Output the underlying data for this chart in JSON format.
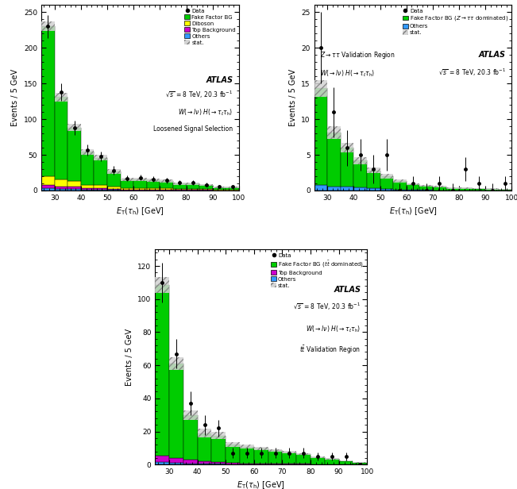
{
  "bins": [
    25,
    30,
    35,
    40,
    45,
    50,
    55,
    60,
    65,
    70,
    75,
    80,
    85,
    90,
    95,
    100
  ],
  "bin_centers": [
    27.5,
    32.5,
    37.5,
    42.5,
    47.5,
    52.5,
    57.5,
    62.5,
    67.5,
    72.5,
    77.5,
    82.5,
    87.5,
    92.5,
    97.5
  ],
  "plot1": {
    "ylabel": "Events / 5 GeV",
    "xlabel": "$E_{\\mathrm{T}}(\\tau_{\\mathrm{h}})$ [GeV]",
    "ylim": [
      0,
      260
    ],
    "yticks": [
      0,
      50,
      100,
      150,
      200,
      250
    ],
    "data_y": [
      230,
      138,
      88,
      57,
      48,
      28,
      17,
      18,
      16,
      14,
      11,
      11,
      8,
      5,
      5
    ],
    "data_yerr": [
      16,
      12,
      10,
      8,
      7,
      6,
      4,
      4,
      4,
      4,
      3,
      3,
      3,
      2,
      2
    ],
    "fake_factor": [
      210,
      115,
      75,
      46,
      38,
      21,
      12,
      12,
      11,
      10,
      8,
      8,
      6,
      3.5,
      3.5
    ],
    "diboson": [
      12,
      10,
      8,
      5,
      5,
      3,
      2,
      2,
      2,
      2,
      1,
      1,
      1,
      0.5,
      0.5
    ],
    "top_bg": [
      5,
      4,
      3,
      2,
      2,
      1.5,
      1,
      1,
      1,
      1,
      0.5,
      0.5,
      0.5,
      0.3,
      0.3
    ],
    "others": [
      3,
      2,
      2,
      1,
      1,
      1,
      0.5,
      0.5,
      0.5,
      0.5,
      0.3,
      0.3,
      0.3,
      0.2,
      0.2
    ],
    "stat_err": [
      7,
      6,
      5,
      4,
      3.5,
      3,
      2,
      2,
      2,
      2,
      1.5,
      1.5,
      1.2,
      1,
      1
    ],
    "colors": {
      "fake_factor": "#00cc00",
      "diboson": "#ffff00",
      "top_bg": "#cc00cc",
      "others": "#3399ff"
    },
    "legend": [
      "Data",
      "Fake Factor BG",
      "Diboson",
      "Top Background",
      "Others",
      "stat."
    ],
    "annot_energy": "$\\sqrt{s}$ = 8 TeV, 20.3 fb$^{-1}$",
    "annot_channel": "$W(\\to l\\nu)$ $H(\\to\\tau_{\\ell}\\tau_{\\mathrm{h}})$",
    "annot_extra": "Loosened Signal Selection"
  },
  "plot2": {
    "ylabel": "Events / 5 GeV",
    "xlabel": "$E_{\\mathrm{T}}(\\tau_{\\mathrm{h}})$ [GeV]",
    "ylim": [
      0,
      26
    ],
    "yticks": [
      0,
      5,
      10,
      15,
      20,
      25
    ],
    "data_y": [
      20,
      11,
      6,
      5,
      3,
      5,
      0,
      1,
      0,
      1,
      0,
      3,
      1,
      0,
      1
    ],
    "data_yerr": [
      5,
      3.5,
      2.5,
      2.2,
      2,
      2.2,
      1,
      1,
      1,
      1,
      1,
      1.7,
      1,
      1,
      1
    ],
    "fake_factor": [
      13.5,
      7.5,
      5.5,
      3.8,
      2.5,
      1.8,
      1.2,
      0.8,
      0.6,
      0.5,
      0.3,
      0.3,
      0.2,
      0.15,
      0.1
    ],
    "others": [
      0.8,
      0.6,
      0.5,
      0.4,
      0.3,
      0.2,
      0.1,
      0.1,
      0.1,
      0.05,
      0.05,
      0.05,
      0.03,
      0.03,
      0.02
    ],
    "stat_err": [
      1.2,
      0.9,
      0.7,
      0.5,
      0.4,
      0.3,
      0.2,
      0.15,
      0.12,
      0.1,
      0.08,
      0.08,
      0.06,
      0.05,
      0.04
    ],
    "colors": {
      "fake_factor": "#00cc00",
      "others": "#3399ff"
    },
    "legend": [
      "Data",
      "Fake Factor BG ($Z\\to\\tau\\tau$ dominated)",
      "Others",
      "stat."
    ],
    "annot_region": "$Z\\to\\tau\\tau$ Validation Region",
    "annot_channel": "$W(\\to l\\nu)$ $H(\\to\\tau_{\\ell}\\tau_{\\mathrm{h}})$",
    "annot_energy": "$\\sqrt{s}$ = 8 TeV, 20.3 fb$^{-1}$"
  },
  "plot3": {
    "ylabel": "Events / 5 GeV",
    "xlabel": "$E_{\\mathrm{T}}(\\tau_{\\mathrm{h}})$ [GeV]",
    "ylim": [
      0,
      130
    ],
    "yticks": [
      0,
      20,
      40,
      60,
      80,
      100,
      120
    ],
    "data_y": [
      110,
      67,
      37,
      24,
      22,
      7,
      7,
      7,
      7,
      7,
      7,
      5,
      5,
      5,
      0
    ],
    "data_yerr": [
      12,
      9,
      7,
      6,
      5,
      3,
      3,
      3,
      3,
      3,
      3,
      2.5,
      2.5,
      2.5,
      1
    ],
    "fake_factor": [
      103,
      57,
      27,
      17,
      16,
      11,
      10,
      9,
      8,
      7,
      6,
      4,
      3,
      2,
      1
    ],
    "top_bg": [
      4,
      3,
      2,
      1.5,
      1.2,
      0.8,
      0.6,
      0.5,
      0.4,
      0.3,
      0.3,
      0.2,
      0.2,
      0.15,
      0.1
    ],
    "others": [
      1.5,
      1,
      0.8,
      0.5,
      0.4,
      0.3,
      0.2,
      0.15,
      0.12,
      0.1,
      0.08,
      0.07,
      0.06,
      0.05,
      0.04
    ],
    "stat_err": [
      5,
      4,
      3,
      2.5,
      2,
      1.5,
      1.2,
      1,
      0.8,
      0.7,
      0.6,
      0.5,
      0.4,
      0.35,
      0.3
    ],
    "colors": {
      "fake_factor": "#00cc00",
      "top_bg": "#cc00cc",
      "others": "#3399ff"
    },
    "legend": [
      "Data",
      "Fake Factor BG ($t\\bar{t}$ dominated)",
      "Top Background",
      "Others",
      "stat."
    ],
    "annot_energy": "$\\sqrt{s}$ = 8 TeV, 20.3 fb$^{-1}$",
    "annot_channel": "$W(\\to l\\nu)$ $H(\\to\\tau_{\\ell}\\tau_{\\mathrm{h}})$",
    "annot_extra": "$t\\bar{t}$ Validation Region"
  }
}
